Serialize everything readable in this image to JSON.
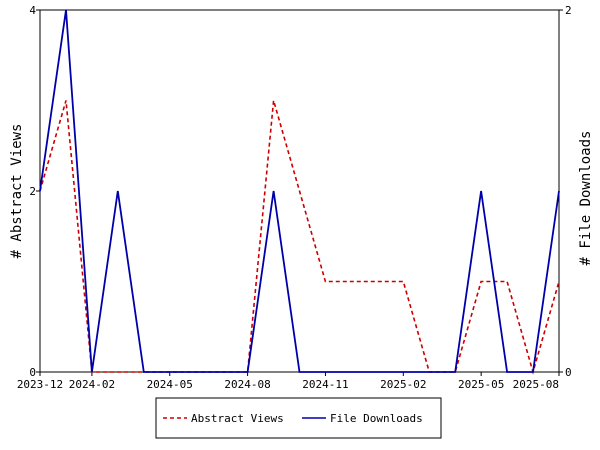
{
  "chart_data": {
    "type": "line",
    "x": [
      "2023-12",
      "2024-01",
      "2024-02",
      "2024-03",
      "2024-04",
      "2024-05",
      "2024-06",
      "2024-07",
      "2024-08",
      "2024-09",
      "2024-10",
      "2024-11",
      "2024-12",
      "2025-01",
      "2025-02",
      "2025-03",
      "2025-04",
      "2025-05",
      "2025-06",
      "2025-07",
      "2025-08"
    ],
    "x_tick_labels": [
      "2023-12",
      "2024-02",
      "2024-05",
      "2024-08",
      "2024-11",
      "2025-02",
      "2025-05",
      "2025-08"
    ],
    "x_tick_positions": [
      "2023-12",
      "2024-02",
      "2024-05",
      "2024-08",
      "2024-11",
      "2025-02",
      "2025-05",
      "2025-08"
    ],
    "ylabel_left": "# Abstract Views",
    "ylabel_right": "# File Downloads",
    "ylim_left": [
      0,
      4
    ],
    "ylim_right": [
      0,
      2
    ],
    "yticks_left": [
      "0",
      "2",
      "4"
    ],
    "yticks_right": [
      "0",
      "2"
    ],
    "series": [
      {
        "name": "Abstract Views",
        "axis": "left",
        "style": "dashed",
        "color": "#cc0000",
        "values": [
          2,
          3,
          0,
          0,
          0,
          0,
          0,
          0,
          0,
          3,
          2,
          1,
          1,
          1,
          1,
          0,
          0,
          1,
          1,
          0,
          1
        ]
      },
      {
        "name": "File Downloads",
        "axis": "right",
        "style": "solid",
        "color": "#0000aa",
        "values": [
          1,
          2,
          0,
          1,
          0,
          0,
          0,
          0,
          0,
          1,
          0,
          0,
          0,
          0,
          0,
          0,
          0,
          1,
          0,
          0,
          1
        ]
      }
    ],
    "legend_placement": "bottom",
    "grid": false
  }
}
